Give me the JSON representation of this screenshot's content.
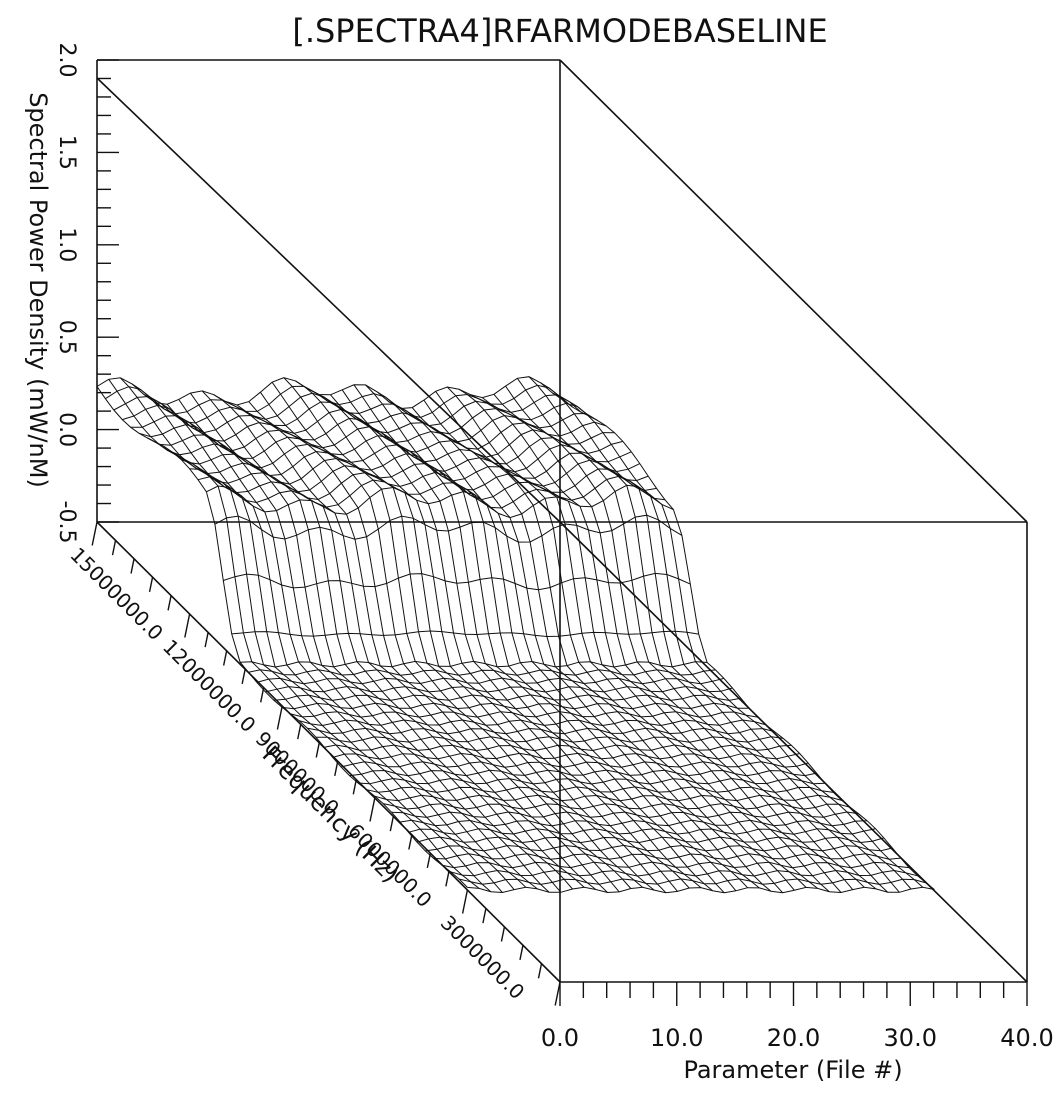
{
  "chart_data": {
    "type": "surface",
    "title": "[.SPECTRA4]RFARMODEBASELINE",
    "xlabel": "Parameter (File #)",
    "ylabel": "Frequency (Hz)",
    "zlabel": "Spectral Power Density (mW/nM)",
    "x_range": [
      0.0,
      40.0
    ],
    "y_range": [
      0.0,
      15000000.0
    ],
    "z_range": [
      -0.5,
      2.0
    ],
    "x_ticks": [
      "0.0",
      "10.0",
      "20.0",
      "30.0",
      "40.0"
    ],
    "y_ticks": [
      "3000000.0",
      "6000000.0",
      "9000000.0",
      "12000000.0",
      "15000000.0"
    ],
    "z_ticks": [
      "2.0",
      "1.5",
      "1.0",
      "0.5",
      "0.0",
      "-0.5"
    ],
    "surface_summary": {
      "note": "Wire-frame surface: broad plateau near the highest frequencies, falling to a flat floor at lower frequencies across all parameter files.",
      "plateau_level": 0.2,
      "floor_level": -0.5,
      "plateau_frequency_range": [
        10500000.0,
        15000000.0
      ]
    },
    "grid": false,
    "legend": "none"
  }
}
